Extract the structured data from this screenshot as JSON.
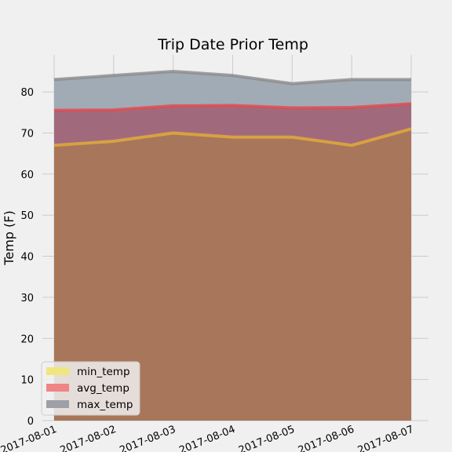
{
  "chart_data": {
    "type": "area",
    "title": "Trip Date Prior Temp",
    "xlabel": "",
    "ylabel": "Temp (F)",
    "x": [
      "2017-08-01",
      "2017-08-02",
      "2017-08-03",
      "2017-08-04",
      "2017-08-05",
      "2017-08-06",
      "2017-08-07"
    ],
    "ylim": [
      0,
      89
    ],
    "yticks": [
      0,
      10,
      20,
      30,
      40,
      50,
      60,
      70,
      80
    ],
    "grid": true,
    "stacked": false,
    "legend_position": "lower-left",
    "series": [
      {
        "name": "min_temp",
        "values": [
          67,
          68,
          70,
          69,
          69,
          67,
          71
        ],
        "color": "#e5ae38"
      },
      {
        "name": "avg_temp",
        "values": [
          75.5,
          75.6,
          76.6,
          76.7,
          76.1,
          76.2,
          77.1
        ],
        "color": "#e24a50"
      },
      {
        "name": "max_temp",
        "values": [
          83,
          84,
          85,
          84,
          82,
          83,
          83
        ],
        "color": "#8b8b8b"
      }
    ],
    "area_colors": {
      "max_temp": "#a1abb5",
      "avg_temp": "#a16a7c",
      "min_temp": "#a8765a"
    },
    "legend_swatch_colors": {
      "min_temp": "#efe67f",
      "avg_temp": "#ef8584",
      "max_temp": "#9da0a8"
    }
  }
}
